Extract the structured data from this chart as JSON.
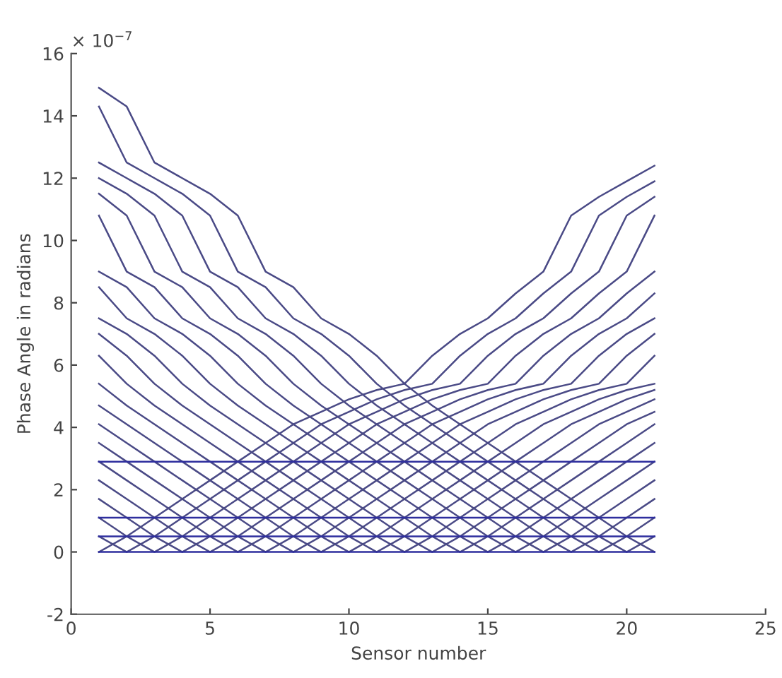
{
  "chart_data": {
    "type": "line",
    "xlabel": "Sensor number",
    "ylabel": "Phase Angle in radians",
    "annotations": [
      "× 10$^{−7}$"
    ],
    "x": [
      1,
      2,
      3,
      4,
      5,
      6,
      7,
      8,
      9,
      10,
      11,
      12,
      13,
      14,
      15,
      16,
      17,
      18,
      19,
      20,
      21
    ],
    "xlim": [
      0,
      25
    ],
    "xticks": [
      0,
      5,
      10,
      15,
      20,
      25
    ],
    "ylim": [
      -2,
      16
    ],
    "yticks": [
      -2,
      0,
      2,
      4,
      6,
      8,
      10,
      12,
      14,
      16
    ],
    "grid": false,
    "legend": false,
    "marker": "none",
    "line_style": "solid",
    "series": [
      {
        "color": "#4a4a86",
        "values": [
          0,
          0.5,
          1.1,
          1.7,
          2.3,
          2.9,
          3.5,
          4.1,
          4.5,
          4.9,
          5.2,
          5.4,
          6.3,
          7.0,
          7.5,
          8.3,
          9.0,
          10.8,
          11.4,
          11.9,
          12.4
        ]
      },
      {
        "color": "#4a4a86",
        "values": [
          0.5,
          0,
          0.5,
          1.1,
          1.7,
          2.3,
          2.9,
          3.5,
          4.1,
          4.5,
          4.9,
          5.2,
          5.4,
          6.3,
          7.0,
          7.5,
          8.3,
          9.0,
          10.8,
          11.4,
          11.9
        ]
      },
      {
        "color": "#4a4a86",
        "values": [
          1.1,
          0.5,
          0,
          0.5,
          1.1,
          1.7,
          2.3,
          2.9,
          3.5,
          4.1,
          4.5,
          4.9,
          5.2,
          5.4,
          6.3,
          7.0,
          7.5,
          8.3,
          9.0,
          10.8,
          11.4
        ]
      },
      {
        "color": "#4a4a86",
        "values": [
          1.7,
          1.1,
          0.5,
          0,
          0.5,
          1.1,
          1.7,
          2.3,
          2.9,
          3.5,
          4.1,
          4.5,
          4.9,
          5.2,
          5.4,
          6.3,
          7.0,
          7.5,
          8.3,
          9.0,
          10.8
        ]
      },
      {
        "color": "#4a4a86",
        "values": [
          2.3,
          1.7,
          1.1,
          0.5,
          0,
          0.5,
          1.1,
          1.7,
          2.3,
          2.9,
          3.5,
          4.1,
          4.5,
          4.9,
          5.2,
          5.4,
          6.3,
          7.0,
          7.5,
          8.3,
          9.0
        ]
      },
      {
        "color": "#4a4a86",
        "values": [
          2.9,
          2.3,
          1.7,
          1.1,
          0.5,
          0,
          0.5,
          1.1,
          1.7,
          2.3,
          2.9,
          3.5,
          4.1,
          4.5,
          4.9,
          5.2,
          5.4,
          6.3,
          7.0,
          7.5,
          8.3
        ]
      },
      {
        "color": "#4a4a86",
        "values": [
          3.5,
          2.9,
          2.3,
          1.7,
          1.1,
          0.5,
          0,
          0.5,
          1.1,
          1.7,
          2.3,
          2.9,
          3.5,
          4.1,
          4.5,
          4.9,
          5.2,
          5.4,
          6.3,
          7.0,
          7.5
        ]
      },
      {
        "color": "#4a4a86",
        "values": [
          4.1,
          3.5,
          2.9,
          2.3,
          1.7,
          1.1,
          0.5,
          0,
          0.5,
          1.1,
          1.7,
          2.3,
          2.9,
          3.5,
          4.1,
          4.5,
          4.9,
          5.2,
          5.4,
          6.3,
          7.0
        ]
      },
      {
        "color": "#4a4a86",
        "values": [
          4.7,
          4.1,
          3.5,
          2.9,
          2.3,
          1.7,
          1.1,
          0.5,
          0,
          0.5,
          1.1,
          1.7,
          2.3,
          2.9,
          3.5,
          4.1,
          4.5,
          4.9,
          5.2,
          5.4,
          6.3
        ]
      },
      {
        "color": "#4a4a86",
        "values": [
          5.4,
          4.7,
          4.1,
          3.5,
          2.9,
          2.3,
          1.7,
          1.1,
          0.5,
          0,
          0.5,
          1.1,
          1.7,
          2.3,
          2.9,
          3.5,
          4.1,
          4.5,
          4.9,
          5.2,
          5.4
        ]
      },
      {
        "color": "#4a4a86",
        "values": [
          6.3,
          5.4,
          4.7,
          4.1,
          3.5,
          2.9,
          2.3,
          1.7,
          1.1,
          0.5,
          0,
          0.5,
          1.1,
          1.7,
          2.3,
          2.9,
          3.5,
          4.1,
          4.5,
          4.9,
          5.2
        ]
      },
      {
        "color": "#4a4a86",
        "values": [
          7.0,
          6.3,
          5.4,
          4.7,
          4.1,
          3.5,
          2.9,
          2.3,
          1.7,
          1.1,
          0.5,
          0,
          0.5,
          1.1,
          1.7,
          2.3,
          2.9,
          3.5,
          4.1,
          4.5,
          4.9
        ]
      },
      {
        "color": "#4a4a86",
        "values": [
          7.5,
          7.0,
          6.3,
          5.4,
          4.7,
          4.1,
          3.5,
          2.9,
          2.3,
          1.7,
          1.1,
          0.5,
          0,
          0.5,
          1.1,
          1.7,
          2.3,
          2.9,
          3.5,
          4.1,
          4.5
        ]
      },
      {
        "color": "#4a4a86",
        "values": [
          8.5,
          7.5,
          7.0,
          6.3,
          5.4,
          4.7,
          4.1,
          3.5,
          2.9,
          2.3,
          1.7,
          1.1,
          0.5,
          0,
          0.5,
          1.1,
          1.7,
          2.3,
          2.9,
          3.5,
          4.1
        ]
      },
      {
        "color": "#4a4a86",
        "values": [
          9.0,
          8.5,
          7.5,
          7.0,
          6.3,
          5.4,
          4.7,
          4.1,
          3.5,
          2.9,
          2.3,
          1.7,
          1.1,
          0.5,
          0,
          0.5,
          1.1,
          1.7,
          2.3,
          2.9,
          3.5
        ]
      },
      {
        "color": "#4a4a86",
        "values": [
          10.8,
          9.0,
          8.5,
          7.5,
          7.0,
          6.3,
          5.4,
          4.7,
          4.1,
          3.5,
          2.9,
          2.3,
          1.7,
          1.1,
          0.5,
          0,
          0.5,
          1.1,
          1.7,
          2.3,
          2.9
        ]
      },
      {
        "color": "#4a4a86",
        "values": [
          11.5,
          10.8,
          9.0,
          8.5,
          7.5,
          7.0,
          6.3,
          5.4,
          4.7,
          4.1,
          3.5,
          2.9,
          2.3,
          1.7,
          1.1,
          0.5,
          0,
          0.5,
          1.1,
          1.7,
          2.3
        ]
      },
      {
        "color": "#4a4a86",
        "values": [
          12.0,
          11.5,
          10.8,
          9.0,
          8.5,
          7.5,
          7.0,
          6.3,
          5.4,
          4.7,
          4.1,
          3.5,
          2.9,
          2.3,
          1.7,
          1.1,
          0.5,
          0,
          0.5,
          1.1,
          1.7
        ]
      },
      {
        "color": "#4a4a86",
        "values": [
          12.5,
          12.0,
          11.5,
          10.8,
          9.0,
          8.5,
          7.5,
          7.0,
          6.3,
          5.4,
          4.7,
          4.1,
          3.5,
          2.9,
          2.3,
          1.7,
          1.1,
          0.5,
          0,
          0.5,
          1.1
        ]
      },
      {
        "color": "#4a4a86",
        "values": [
          14.3,
          12.5,
          12.0,
          11.5,
          10.8,
          9.0,
          8.5,
          7.5,
          7.0,
          6.3,
          5.4,
          4.7,
          4.1,
          3.5,
          2.9,
          2.3,
          1.7,
          1.1,
          0.5,
          0,
          0.5
        ]
      },
      {
        "color": "#4a4a86",
        "values": [
          14.9,
          14.3,
          12.5,
          12.0,
          11.5,
          10.8,
          9.0,
          8.5,
          7.5,
          7.0,
          6.3,
          5.4,
          4.7,
          4.1,
          3.5,
          2.9,
          2.3,
          1.7,
          1.1,
          0.5,
          0
        ]
      },
      {
        "color": "#2e2e9e",
        "values": [
          2.9,
          2.9,
          2.9,
          2.9,
          2.9,
          2.9,
          2.9,
          2.9,
          2.9,
          2.9,
          2.9,
          2.9,
          2.9,
          2.9,
          2.9,
          2.9,
          2.9,
          2.9,
          2.9,
          2.9,
          2.9
        ]
      },
      {
        "color": "#2e2e9e",
        "values": [
          1.1,
          1.1,
          1.1,
          1.1,
          1.1,
          1.1,
          1.1,
          1.1,
          1.1,
          1.1,
          1.1,
          1.1,
          1.1,
          1.1,
          1.1,
          1.1,
          1.1,
          1.1,
          1.1,
          1.1,
          1.1
        ]
      },
      {
        "color": "#2e2e9e",
        "values": [
          0.5,
          0.5,
          0.5,
          0.5,
          0.5,
          0.5,
          0.5,
          0.5,
          0.5,
          0.5,
          0.5,
          0.5,
          0.5,
          0.5,
          0.5,
          0.5,
          0.5,
          0.5,
          0.5,
          0.5,
          0.5
        ]
      },
      {
        "color": "#2e2e9e",
        "values": [
          0,
          0,
          0,
          0,
          0,
          0,
          0,
          0,
          0,
          0,
          0,
          0,
          0,
          0,
          0,
          0,
          0,
          0,
          0,
          0,
          0
        ]
      }
    ]
  }
}
